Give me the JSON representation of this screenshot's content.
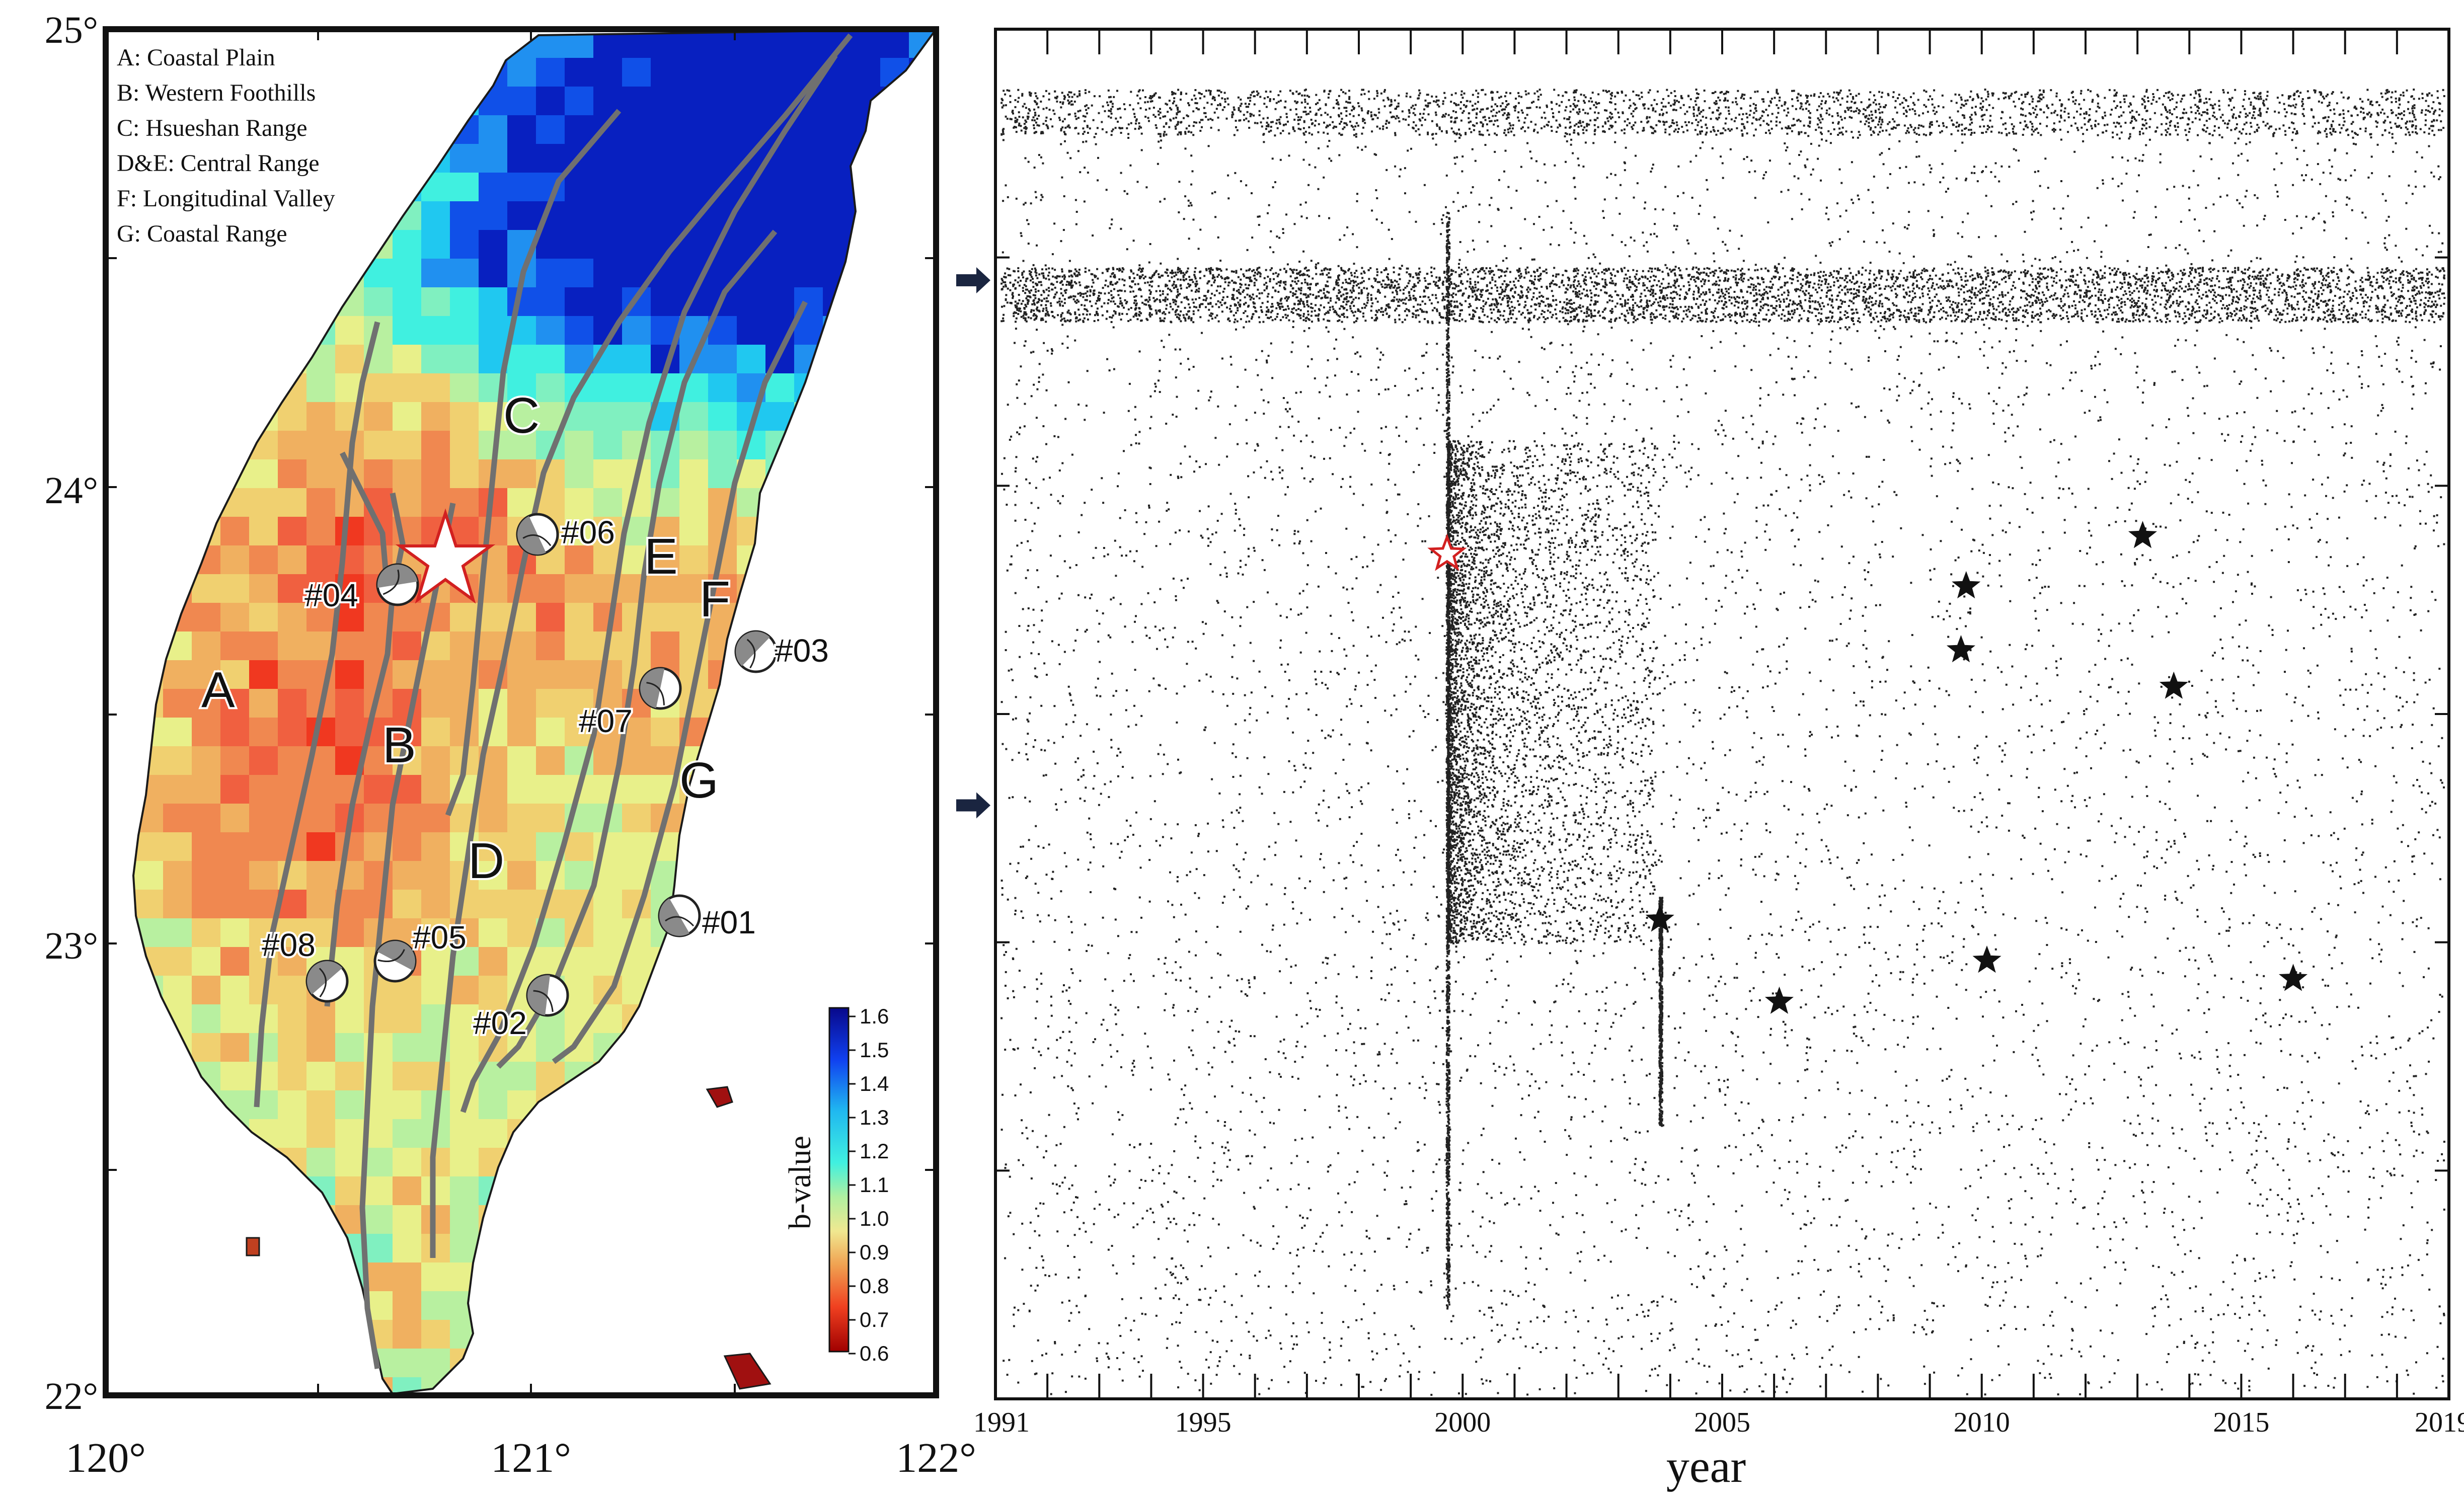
{
  "map": {
    "legend_lines": [
      "A: Coastal Plain",
      "B: Western Foothills",
      "C: Hsueshan Range",
      "D&E: Central Range",
      "F: Longitudinal Valley",
      "G: Coastal Range"
    ],
    "lat_ticks": [
      "25°",
      "24°",
      "23°",
      "22°"
    ],
    "lon_ticks": [
      "120°",
      "121°",
      "122°"
    ],
    "region_labels": [
      "A",
      "B",
      "C",
      "D",
      "E",
      "F",
      "G"
    ],
    "event_labels": [
      "#01",
      "#02",
      "#03",
      "#04",
      "#05",
      "#06",
      "#07",
      "#08"
    ],
    "colorbar": {
      "title": "b-value",
      "ticks": [
        "1.6",
        "1.5",
        "1.4",
        "1.3",
        "1.2",
        "1.1",
        "1.0",
        "0.9",
        "0.8",
        "0.7",
        "0.6"
      ]
    },
    "colors": {
      "low": "#a50000",
      "mid": "#f0e890",
      "high": "#0a1fd0",
      "outline": "#707070",
      "star": "#d22020"
    }
  },
  "chart_data": {
    "type": "scatter",
    "xlabel": "year",
    "x_ticks": [
      "1991",
      "1995",
      "2000",
      "2005",
      "2010",
      "2015",
      "2019"
    ],
    "xlim": [
      1991,
      2019
    ],
    "ylim": [
      22,
      25
    ],
    "ylabel": "",
    "grid": false,
    "mainshock": {
      "x": 1999.7,
      "y": 23.85
    },
    "stars": [
      {
        "x": 2003.8,
        "y": 23.05
      },
      {
        "x": 2006.1,
        "y": 22.87
      },
      {
        "x": 2009.6,
        "y": 23.64
      },
      {
        "x": 2009.7,
        "y": 23.78
      },
      {
        "x": 2010.1,
        "y": 22.96
      },
      {
        "x": 2013.1,
        "y": 23.89
      },
      {
        "x": 2013.7,
        "y": 23.56
      },
      {
        "x": 2016.0,
        "y": 22.92
      }
    ],
    "arrow_lats": [
      24.45,
      23.3
    ]
  }
}
